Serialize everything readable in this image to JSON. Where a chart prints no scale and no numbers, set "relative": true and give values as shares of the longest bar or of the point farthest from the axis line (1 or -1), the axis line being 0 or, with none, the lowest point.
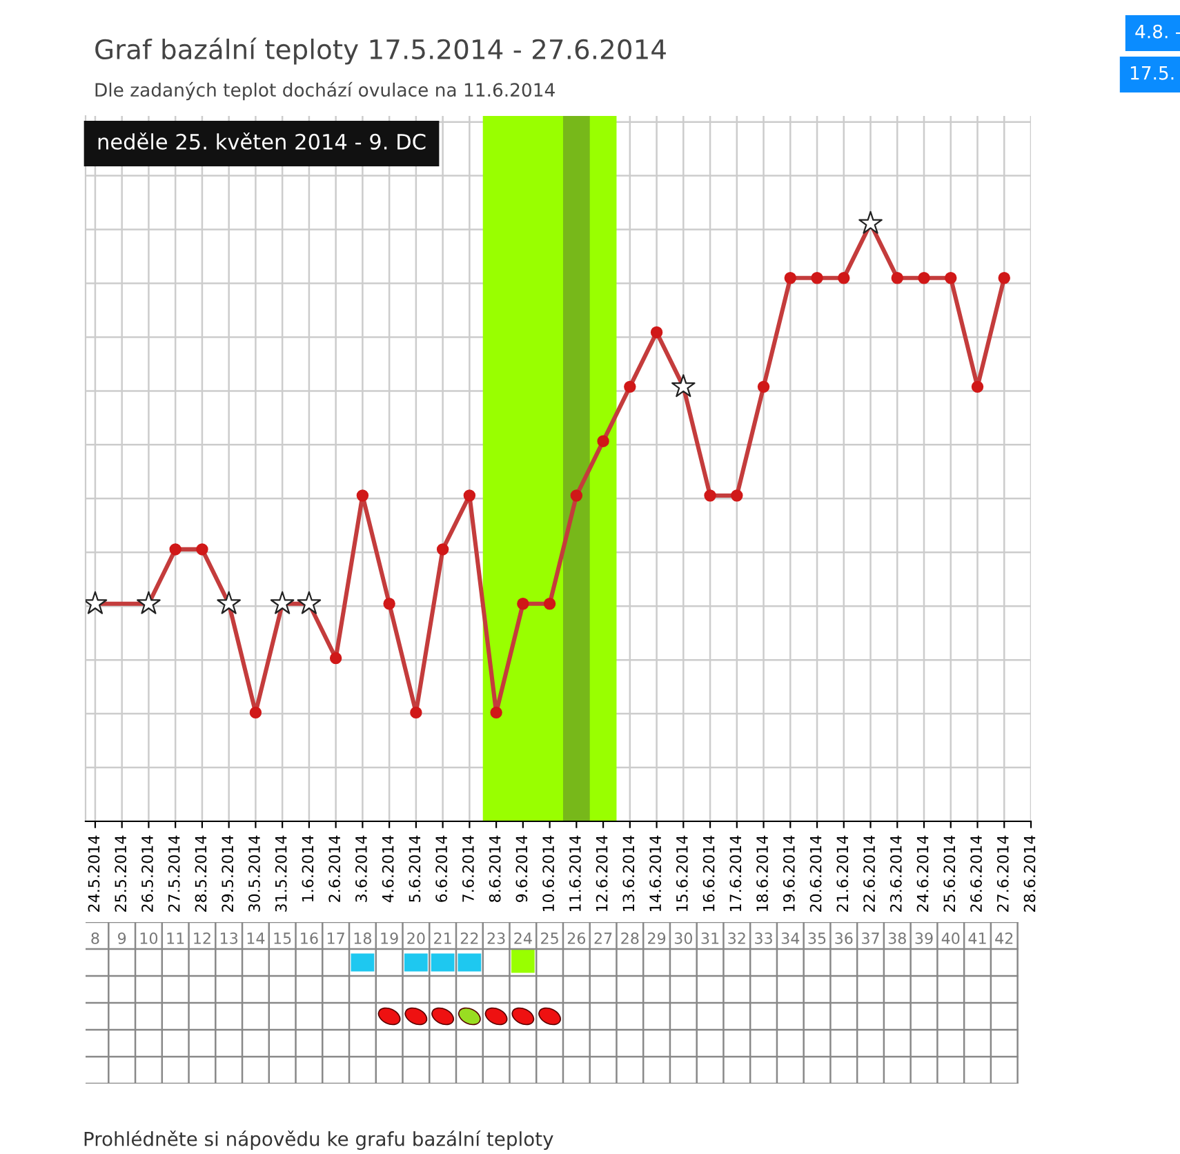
{
  "chart_data": {
    "type": "line",
    "title": "Graf bazální teploty 17.5.2014 - 27.6.2014",
    "subtitle": "Dle zadaných teplot dochází ovulace na 11.6.2014",
    "relative": true,
    "grid": true,
    "categories": [
      "24.5.2014",
      "25.5.2014",
      "26.5.2014",
      "27.5.2014",
      "28.5.2014",
      "29.5.2014",
      "30.5.2014",
      "31.5.2014",
      "1.6.2014",
      "2.6.2014",
      "3.6.2014",
      "4.6.2014",
      "5.6.2014",
      "6.6.2014",
      "7.6.2014",
      "8.6.2014",
      "9.6.2014",
      "10.6.2014",
      "11.6.2014",
      "12.6.2014",
      "13.6.2014",
      "14.6.2014",
      "15.6.2014",
      "16.6.2014",
      "17.6.2014",
      "18.6.2014",
      "19.6.2014",
      "20.6.2014",
      "21.6.2014",
      "22.6.2014",
      "23.6.2014",
      "24.6.2014",
      "25.6.2014",
      "26.6.2014",
      "27.6.2014",
      "28.6.2014"
    ],
    "series": [
      {
        "color": "#c43c3c",
        "marker": "none",
        "values": [
          0.364,
          null,
          0.364,
          0.455,
          0.455,
          0.364,
          0.182,
          0.364,
          0.364,
          0.273,
          0.545,
          0.364,
          0.182,
          0.455,
          0.545,
          0.182,
          0.364,
          0.364,
          0.545,
          0.636,
          0.727,
          0.818,
          0.727,
          0.545,
          0.545,
          0.727,
          0.909,
          0.909,
          0.909,
          1,
          0.909,
          0.909,
          0.909,
          0.727,
          0.909,
          null
        ]
      },
      {
        "type": "scatter",
        "color": "#d01818",
        "marker": "circle",
        "values": [
          null,
          null,
          null,
          0.455,
          0.455,
          null,
          0.182,
          null,
          null,
          0.273,
          0.545,
          0.364,
          0.182,
          0.455,
          0.545,
          0.182,
          0.364,
          0.364,
          0.545,
          0.636,
          0.727,
          0.818,
          null,
          0.545,
          0.545,
          0.727,
          0.909,
          0.909,
          0.909,
          null,
          0.909,
          0.909,
          0.909,
          0.727,
          0.909,
          null
        ]
      },
      {
        "type": "scatter",
        "color": "#ffffff",
        "marker": "star",
        "values": [
          0.364,
          null,
          0.364,
          null,
          null,
          0.364,
          null,
          0.364,
          0.364,
          null,
          null,
          null,
          null,
          null,
          null,
          null,
          null,
          null,
          null,
          null,
          null,
          null,
          0.727,
          null,
          null,
          null,
          null,
          null,
          null,
          1,
          null,
          null,
          null,
          null,
          null,
          null
        ]
      }
    ],
    "x2lim": [
      7.64,
      43
    ],
    "x2ticks": [
      8,
      9,
      10,
      11,
      12,
      13,
      14,
      15,
      16,
      17,
      18,
      19,
      20,
      21,
      22,
      23,
      24,
      25,
      26,
      27,
      28,
      29,
      30,
      31,
      32,
      33,
      34,
      35,
      36,
      37,
      38,
      39,
      40,
      41,
      42
    ],
    "bands": [
      {
        "axis": "x",
        "from": "8.6.2014",
        "to": "12.6.2014",
        "color": "#99ff00"
      },
      {
        "axis": "x",
        "from": "11.6.2014",
        "to": "11.6.2014",
        "color": "#77b81a"
      }
    ],
    "annotations": [
      "neděle 25. květen 2014 - 9. DC",
      "4.8. -",
      "17.5.",
      "Prohlédněte si nápovědu ke grafu bazální teploty"
    ]
  }
}
